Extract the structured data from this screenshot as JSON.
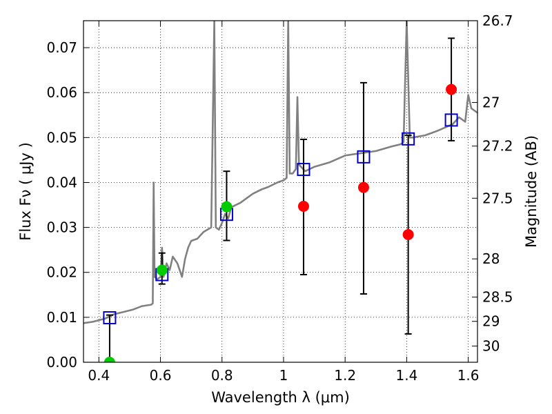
{
  "chart_data": {
    "type": "scatter",
    "xlabel": "Wavelength  λ (μm)",
    "ylabel": "Flux  Fν  ( μJy )",
    "ylabel_right": "Magnitude (AB)",
    "xlim": [
      0.35,
      1.63
    ],
    "ylim": [
      0.0,
      0.076
    ],
    "x_ticks": [
      0.4,
      0.6,
      0.8,
      1.0,
      1.2,
      1.4,
      1.6
    ],
    "x_tick_labels": [
      "0.4",
      "0.6",
      "0.8",
      "1",
      "1.2",
      "1.4",
      "1.6"
    ],
    "y_ticks": [
      0.0,
      0.01,
      0.02,
      0.03,
      0.04,
      0.05,
      0.06,
      0.07
    ],
    "y_tick_labels": [
      "0.00",
      "0.01",
      "0.02",
      "0.03",
      "0.04",
      "0.05",
      "0.06",
      "0.07"
    ],
    "right_ticks": [
      {
        "label": "26.7",
        "flux": 0.0762
      },
      {
        "label": "27",
        "flux": 0.0578
      },
      {
        "label": "27.2",
        "flux": 0.0481
      },
      {
        "label": "27.5",
        "flux": 0.0365
      },
      {
        "label": "28",
        "flux": 0.023
      },
      {
        "label": "28.5",
        "flux": 0.0145
      },
      {
        "label": "29",
        "flux": 0.0091
      },
      {
        "label": "30",
        "flux": 0.0036
      }
    ],
    "grid": true,
    "colors": {
      "model": "#808080",
      "model_points": "#0000cc",
      "detections": "#00cc00",
      "measurements": "#ff0000",
      "errorbars": "#000000"
    },
    "series": [
      {
        "style": "line",
        "points": [
          [
            0.35,
            0.0087
          ],
          [
            0.38,
            0.009
          ],
          [
            0.42,
            0.0097
          ],
          [
            0.45,
            0.0107
          ],
          [
            0.48,
            0.0112
          ],
          [
            0.51,
            0.0117
          ],
          [
            0.54,
            0.0125
          ],
          [
            0.57,
            0.0128
          ],
          [
            0.575,
            0.0131
          ],
          [
            0.578,
            0.04
          ],
          [
            0.581,
            0.019
          ],
          [
            0.59,
            0.0185
          ],
          [
            0.6,
            0.019
          ],
          [
            0.605,
            0.0255
          ],
          [
            0.61,
            0.019
          ],
          [
            0.62,
            0.022
          ],
          [
            0.63,
            0.0205
          ],
          [
            0.64,
            0.0235
          ],
          [
            0.655,
            0.022
          ],
          [
            0.66,
            0.021
          ],
          [
            0.67,
            0.019
          ],
          [
            0.68,
            0.023
          ],
          [
            0.69,
            0.0255
          ],
          [
            0.7,
            0.027
          ],
          [
            0.72,
            0.0275
          ],
          [
            0.74,
            0.029
          ],
          [
            0.765,
            0.03
          ],
          [
            0.775,
            0.076
          ],
          [
            0.78,
            0.03
          ],
          [
            0.79,
            0.0295
          ],
          [
            0.8,
            0.031
          ],
          [
            0.81,
            0.033
          ],
          [
            0.82,
            0.032
          ],
          [
            0.83,
            0.0345
          ],
          [
            0.86,
            0.0355
          ],
          [
            0.88,
            0.0365
          ],
          [
            0.9,
            0.0375
          ],
          [
            0.93,
            0.0385
          ],
          [
            0.95,
            0.039
          ],
          [
            0.98,
            0.04
          ],
          [
            1.0,
            0.0405
          ],
          [
            1.01,
            0.041
          ],
          [
            1.015,
            0.076
          ],
          [
            1.02,
            0.042
          ],
          [
            1.03,
            0.042
          ],
          [
            1.04,
            0.043
          ],
          [
            1.045,
            0.059
          ],
          [
            1.05,
            0.044
          ],
          [
            1.07,
            0.0425
          ],
          [
            1.1,
            0.0435
          ],
          [
            1.15,
            0.0445
          ],
          [
            1.2,
            0.046
          ],
          [
            1.25,
            0.0465
          ],
          [
            1.3,
            0.047
          ],
          [
            1.35,
            0.048
          ],
          [
            1.38,
            0.0485
          ],
          [
            1.39,
            0.049
          ],
          [
            1.4,
            0.076
          ],
          [
            1.41,
            0.05
          ],
          [
            1.42,
            0.05
          ],
          [
            1.46,
            0.0505
          ],
          [
            1.5,
            0.0515
          ],
          [
            1.55,
            0.053
          ],
          [
            1.57,
            0.0545
          ],
          [
            1.59,
            0.0535
          ],
          [
            1.6,
            0.0595
          ],
          [
            1.61,
            0.0565
          ],
          [
            1.63,
            0.0555
          ]
        ]
      },
      {
        "style": "open-square",
        "points": [
          [
            0.435,
            0.0099
          ],
          [
            0.605,
            0.0195
          ],
          [
            0.815,
            0.0329
          ],
          [
            1.065,
            0.0429
          ],
          [
            1.26,
            0.0457
          ],
          [
            1.405,
            0.0497
          ],
          [
            1.545,
            0.0539
          ]
        ]
      },
      {
        "style": "filled-circle-green",
        "points": [
          [
            0.435,
            0.0
          ],
          [
            0.605,
            0.0205
          ],
          [
            0.815,
            0.0346
          ]
        ],
        "errors": [
          [
            0.0,
            0.0105
          ],
          [
            0.0174,
            0.0243
          ],
          [
            0.0271,
            0.0425
          ]
        ]
      },
      {
        "style": "filled-circle-red",
        "points": [
          [
            1.065,
            0.0347
          ],
          [
            1.26,
            0.0389
          ],
          [
            1.405,
            0.0284
          ],
          [
            1.545,
            0.0607
          ]
        ],
        "errors": [
          [
            0.0195,
            0.0496
          ],
          [
            0.0152,
            0.0622
          ],
          [
            0.0063,
            0.0505
          ],
          [
            0.0493,
            0.0721
          ]
        ]
      }
    ]
  }
}
